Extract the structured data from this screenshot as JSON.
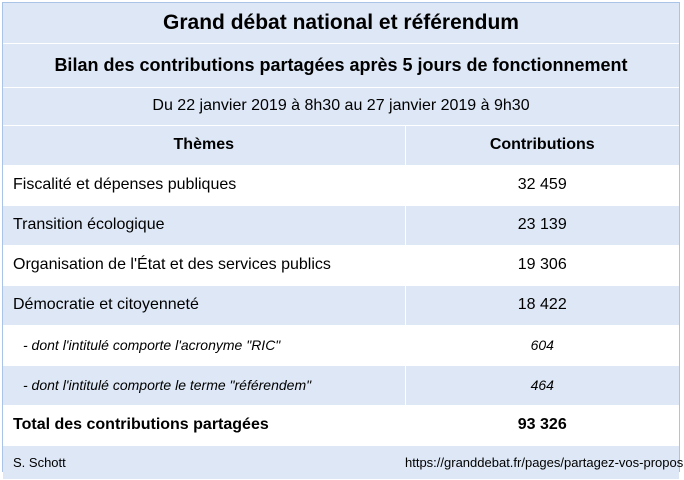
{
  "title": "Grand débat national et référendum",
  "subtitle": "Bilan des contributions partagées après 5 jours de fonctionnement",
  "period": "Du 22 janvier 2019 à 8h30 au 27 janvier 2019 à 9h30",
  "columns": {
    "theme": "Thèmes",
    "contributions": "Contributions"
  },
  "rows": [
    {
      "label": "Fiscalité et dépenses publiques",
      "value": "32 459"
    },
    {
      "label": "Transition écologique",
      "value": "23 139"
    },
    {
      "label": "Organisation de l'État et des services publics",
      "value": "19 306"
    },
    {
      "label": "Démocratie et citoyenneté",
      "value": "18 422"
    },
    {
      "label": "- dont l'intitulé comporte l'acronyme \"RIC\"",
      "value": "604"
    },
    {
      "label": "- dont l'intitulé comporte le terme \"référendem\"",
      "value": "464"
    }
  ],
  "total": {
    "label": "Total des contributions  partagées",
    "value": "93 326"
  },
  "footer": {
    "author": "S. Schott",
    "source": "https://granddebat.fr/pages/partagez-vos-propositions"
  },
  "colors": {
    "band": "#dde7f6",
    "border": "#a9c4e6"
  }
}
